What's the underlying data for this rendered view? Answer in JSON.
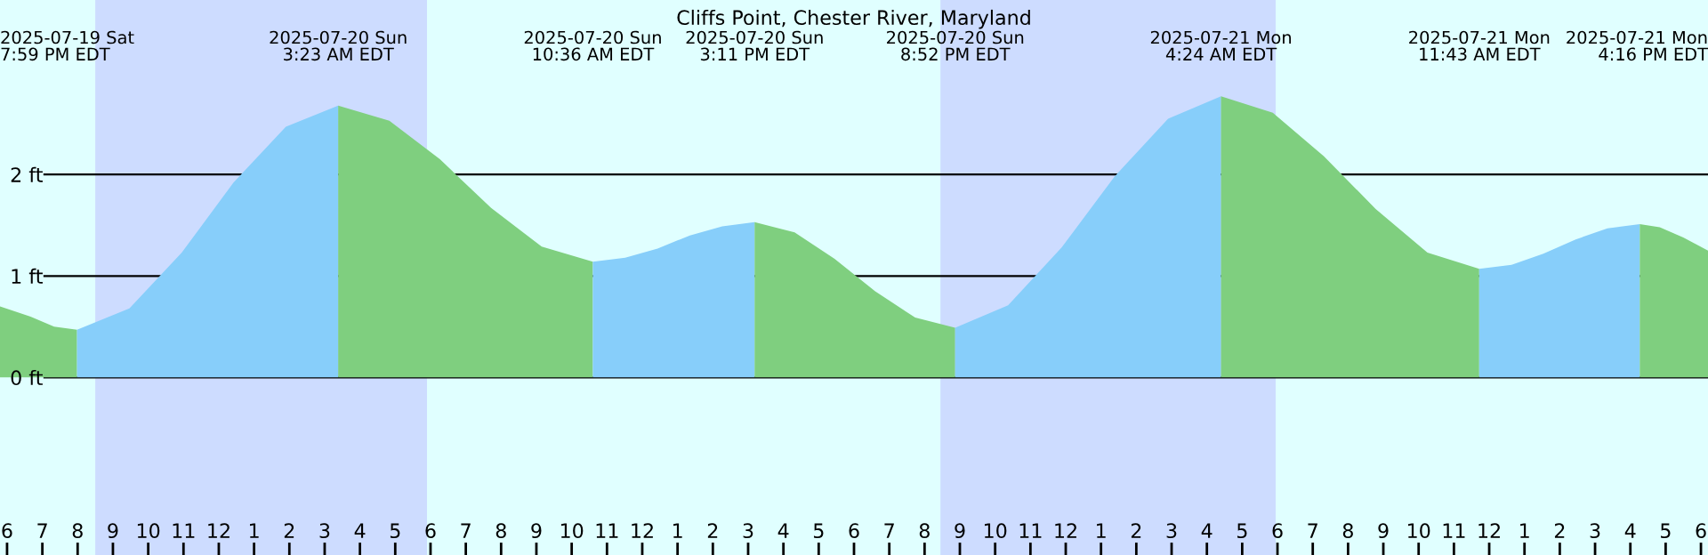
{
  "chart_data": {
    "type": "area",
    "title": "Cliffs Point, Chester River, Maryland",
    "series": [
      {
        "color": "#7fcf7f",
        "x": [
          "2025-07-19T17:48",
          "2025-07-19T18:40",
          "2025-07-19T19:20",
          "2025-07-19T19:59"
        ],
        "values": [
          0.7,
          0.6,
          0.5,
          0.47
        ]
      },
      {
        "color": "#87cefa",
        "x": [
          "2025-07-19T19:59",
          "2025-07-19T21:28",
          "2025-07-19T22:57",
          "2025-07-20T00:25",
          "2025-07-20T01:54",
          "2025-07-20T03:23"
        ],
        "values": [
          0.47,
          0.68,
          1.23,
          1.92,
          2.47,
          2.68
        ]
      },
      {
        "color": "#7fcf7f",
        "x": [
          "2025-07-20T03:23",
          "2025-07-20T04:50",
          "2025-07-20T06:16",
          "2025-07-20T07:43",
          "2025-07-20T09:09",
          "2025-07-20T10:36"
        ],
        "values": [
          2.68,
          2.53,
          2.15,
          1.67,
          1.29,
          1.14
        ]
      },
      {
        "color": "#87cefa",
        "x": [
          "2025-07-20T10:36",
          "2025-07-20T11:31",
          "2025-07-20T12:26",
          "2025-07-20T13:21",
          "2025-07-20T14:16",
          "2025-07-20T15:11"
        ],
        "values": [
          1.14,
          1.18,
          1.27,
          1.4,
          1.49,
          1.53
        ]
      },
      {
        "color": "#7fcf7f",
        "x": [
          "2025-07-20T15:11",
          "2025-07-20T16:19",
          "2025-07-20T17:27",
          "2025-07-20T18:36",
          "2025-07-20T19:44",
          "2025-07-20T20:52"
        ],
        "values": [
          1.53,
          1.43,
          1.17,
          0.85,
          0.59,
          0.49
        ]
      },
      {
        "color": "#87cefa",
        "x": [
          "2025-07-20T20:52",
          "2025-07-20T22:22",
          "2025-07-20T23:53",
          "2025-07-21T01:23",
          "2025-07-21T02:54",
          "2025-07-21T04:24"
        ],
        "values": [
          0.49,
          0.71,
          1.28,
          1.98,
          2.55,
          2.77
        ]
      },
      {
        "color": "#7fcf7f",
        "x": [
          "2025-07-21T04:24",
          "2025-07-21T05:52",
          "2025-07-21T07:19",
          "2025-07-21T08:47",
          "2025-07-21T10:15",
          "2025-07-21T11:43"
        ],
        "values": [
          2.77,
          2.61,
          2.18,
          1.66,
          1.23,
          1.07
        ]
      },
      {
        "color": "#87cefa",
        "x": [
          "2025-07-21T11:43",
          "2025-07-21T12:38",
          "2025-07-21T13:32",
          "2025-07-21T14:27",
          "2025-07-21T15:21",
          "2025-07-21T16:16"
        ],
        "values": [
          1.07,
          1.11,
          1.22,
          1.36,
          1.47,
          1.51
        ]
      },
      {
        "color": "#7fcf7f",
        "x": [
          "2025-07-21T16:16",
          "2025-07-21T16:50",
          "2025-07-21T17:30",
          "2025-07-21T18:12"
        ],
        "values": [
          1.51,
          1.48,
          1.38,
          1.25
        ]
      }
    ],
    "annotations": [
      "2025-07-19 Sat\n7:59 PM EDT",
      "2025-07-20 Sun\n3:23 AM EDT",
      "2025-07-20 Sun\n10:36 AM EDT",
      "2025-07-20 Sun\n3:11 PM EDT",
      "2025-07-20 Sun\n8:52 PM EDT",
      "2025-07-21 Mon\n4:24 AM EDT",
      "2025-07-21 Mon\n11:43 AM EDT",
      "2025-07-21 Mon\n4:16 PM EDT"
    ],
    "bands": [
      {
        "axis": "x",
        "from": "2025-07-19T20:30",
        "to": "2025-07-20T05:54",
        "color": "#cddcff"
      },
      {
        "axis": "x",
        "from": "2025-07-20T20:27",
        "to": "2025-07-21T05:57",
        "color": "#cddcff"
      }
    ],
    "xlim": [
      "2025-07-19T17:48",
      "2025-07-21T18:12"
    ],
    "ylim": [
      -1.75,
      3.72
    ],
    "yticks": [
      {
        "value": 0,
        "label": "0 ft"
      },
      {
        "value": 1,
        "label": "1 ft"
      },
      {
        "value": 2,
        "label": "2 ft"
      }
    ],
    "xticks": [
      {
        "value": "2025-07-19T18:00",
        "label": "6"
      },
      {
        "value": "2025-07-19T19:00",
        "label": "7"
      },
      {
        "value": "2025-07-19T20:00",
        "label": "8"
      },
      {
        "value": "2025-07-19T21:00",
        "label": "9"
      },
      {
        "value": "2025-07-19T22:00",
        "label": "10"
      },
      {
        "value": "2025-07-19T23:00",
        "label": "11"
      },
      {
        "value": "2025-07-20T00:00",
        "label": "12"
      },
      {
        "value": "2025-07-20T01:00",
        "label": "1"
      },
      {
        "value": "2025-07-20T02:00",
        "label": "2"
      },
      {
        "value": "2025-07-20T03:00",
        "label": "3"
      },
      {
        "value": "2025-07-20T04:00",
        "label": "4"
      },
      {
        "value": "2025-07-20T05:00",
        "label": "5"
      },
      {
        "value": "2025-07-20T06:00",
        "label": "6"
      },
      {
        "value": "2025-07-20T07:00",
        "label": "7"
      },
      {
        "value": "2025-07-20T08:00",
        "label": "8"
      },
      {
        "value": "2025-07-20T09:00",
        "label": "9"
      },
      {
        "value": "2025-07-20T10:00",
        "label": "10"
      },
      {
        "value": "2025-07-20T11:00",
        "label": "11"
      },
      {
        "value": "2025-07-20T12:00",
        "label": "12"
      },
      {
        "value": "2025-07-20T13:00",
        "label": "1"
      },
      {
        "value": "2025-07-20T14:00",
        "label": "2"
      },
      {
        "value": "2025-07-20T15:00",
        "label": "3"
      },
      {
        "value": "2025-07-20T16:00",
        "label": "4"
      },
      {
        "value": "2025-07-20T17:00",
        "label": "5"
      },
      {
        "value": "2025-07-20T18:00",
        "label": "6"
      },
      {
        "value": "2025-07-20T19:00",
        "label": "7"
      },
      {
        "value": "2025-07-20T20:00",
        "label": "8"
      },
      {
        "value": "2025-07-20T21:00",
        "label": "9"
      },
      {
        "value": "2025-07-20T22:00",
        "label": "10"
      },
      {
        "value": "2025-07-20T23:00",
        "label": "11"
      },
      {
        "value": "2025-07-21T00:00",
        "label": "12"
      },
      {
        "value": "2025-07-21T01:00",
        "label": "1"
      },
      {
        "value": "2025-07-21T02:00",
        "label": "2"
      },
      {
        "value": "2025-07-21T03:00",
        "label": "3"
      },
      {
        "value": "2025-07-21T04:00",
        "label": "4"
      },
      {
        "value": "2025-07-21T05:00",
        "label": "5"
      },
      {
        "value": "2025-07-21T06:00",
        "label": "6"
      },
      {
        "value": "2025-07-21T07:00",
        "label": "7"
      },
      {
        "value": "2025-07-21T08:00",
        "label": "8"
      },
      {
        "value": "2025-07-21T09:00",
        "label": "9"
      },
      {
        "value": "2025-07-21T10:00",
        "label": "10"
      },
      {
        "value": "2025-07-21T11:00",
        "label": "11"
      },
      {
        "value": "2025-07-21T12:00",
        "label": "12"
      },
      {
        "value": "2025-07-21T13:00",
        "label": "1"
      },
      {
        "value": "2025-07-21T14:00",
        "label": "2"
      },
      {
        "value": "2025-07-21T15:00",
        "label": "3"
      },
      {
        "value": "2025-07-21T16:00",
        "label": "4"
      },
      {
        "value": "2025-07-21T17:00",
        "label": "5"
      },
      {
        "value": "2025-07-21T18:00",
        "label": "6"
      }
    ],
    "grid": "y"
  }
}
